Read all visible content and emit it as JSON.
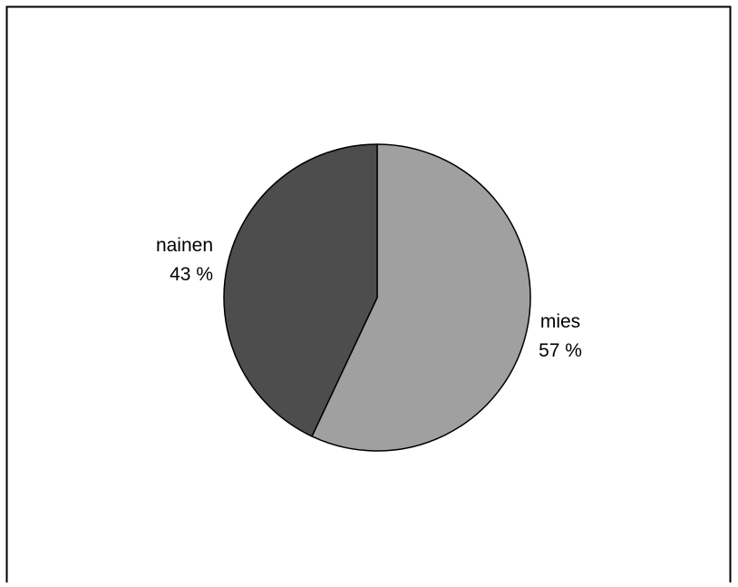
{
  "chart_data": {
    "type": "pie",
    "title": "",
    "slices": [
      {
        "label": "mies",
        "value": 57,
        "value_label": "57 %",
        "color": "#a0a0a0"
      },
      {
        "label": "nainen",
        "value": 43,
        "value_label": "43 %",
        "color": "#4d4d4d"
      }
    ],
    "start": "12 o'clock",
    "direction": "clockwise",
    "legend": "none",
    "slice_stroke": "#000000",
    "border_color": "#000000",
    "background": "#ffffff"
  }
}
